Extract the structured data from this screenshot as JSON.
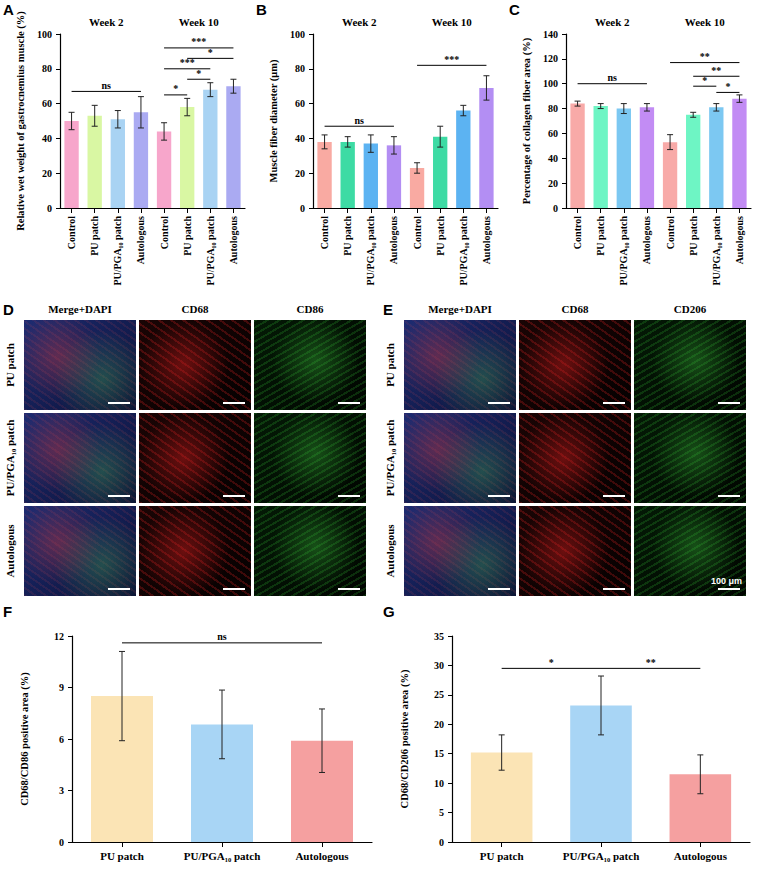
{
  "chart_data": [
    {
      "panel": "A",
      "type": "bar",
      "y_label": "Relative wet weight of gastrocnemius muscle (%)",
      "categories": [
        "Control",
        "PU patch",
        "PU/PGA₁₀ patch",
        "Autologous",
        "Control",
        "PU patch",
        "PU/PGA₁₀ patch",
        "Autologous"
      ],
      "values": [
        50,
        53,
        51,
        55,
        44,
        58,
        68,
        70
      ],
      "errors": [
        5,
        6,
        5,
        9,
        5,
        5,
        4,
        4
      ],
      "colors": [
        "#f7a6cb",
        "#d9f7a3",
        "#a9d3f3",
        "#aaaaf2",
        "#f7a6cb",
        "#d9f7a3",
        "#a9d3f3",
        "#aaaaf2"
      ],
      "ylim": [
        0,
        100
      ],
      "yticks": [
        0,
        20,
        40,
        60,
        80,
        100
      ],
      "grid": false,
      "groups": [
        {
          "label": "Week 2",
          "from": 0,
          "to": 3
        },
        {
          "label": "Week 10",
          "from": 4,
          "to": 7
        }
      ],
      "significance": [
        {
          "from": 0,
          "to": 3,
          "y": 67,
          "label": "ns"
        },
        {
          "from": 4,
          "to": 5,
          "y": 65,
          "label": "*"
        },
        {
          "from": 5,
          "to": 6,
          "y": 74,
          "label": "*"
        },
        {
          "from": 4,
          "to": 6,
          "y": 80,
          "label": "***"
        },
        {
          "from": 5,
          "to": 7,
          "y": 86,
          "label": "*"
        },
        {
          "from": 4,
          "to": 7,
          "y": 92,
          "label": "***"
        }
      ]
    },
    {
      "panel": "B",
      "type": "bar",
      "y_label": "Muscle fiber diameter (μm)",
      "categories": [
        "Control",
        "PU patch",
        "PU/PGA₁₀ patch",
        "Autologous",
        "Control",
        "PU patch",
        "PU/PGA₁₀ patch",
        "Autologous"
      ],
      "values": [
        38,
        38,
        37,
        36,
        23,
        41,
        56,
        69
      ],
      "errors": [
        4,
        3,
        5,
        5,
        3,
        6,
        3,
        7
      ],
      "colors": [
        "#f9aaa2",
        "#3ddba4",
        "#5cb3f2",
        "#b38ef3",
        "#f9aaa2",
        "#3ddba4",
        "#5cb3f2",
        "#b38ef3"
      ],
      "ylim": [
        0,
        100
      ],
      "yticks": [
        0,
        20,
        40,
        60,
        80,
        100
      ],
      "grid": false,
      "groups": [
        {
          "label": "Week 2",
          "from": 0,
          "to": 3
        },
        {
          "label": "Week 10",
          "from": 4,
          "to": 7
        }
      ],
      "significance": [
        {
          "from": 0,
          "to": 3,
          "y": 47,
          "label": "ns"
        },
        {
          "from": 4,
          "to": 7,
          "y": 82,
          "label": "***"
        }
      ]
    },
    {
      "panel": "C",
      "type": "bar",
      "y_label": "Percentage of collagen fiber area (%)",
      "categories": [
        "Control",
        "PU patch",
        "PU/PGA₁₀ patch",
        "Autologous",
        "Control",
        "PU patch",
        "PU/PGA₁₀ patch",
        "Autologous"
      ],
      "values": [
        84,
        82,
        80,
        81,
        53,
        75,
        81,
        88
      ],
      "errors": [
        2,
        2,
        4,
        3,
        6,
        2,
        3,
        3
      ],
      "colors": [
        "#f8aaa8",
        "#6ef5c4",
        "#7cc8f2",
        "#c28cf4",
        "#f8aaa8",
        "#6ef5c4",
        "#7cc8f2",
        "#c28cf4"
      ],
      "ylim": [
        0,
        140
      ],
      "yticks": [
        0,
        20,
        40,
        60,
        80,
        100,
        120,
        140
      ],
      "grid": false,
      "groups": [
        {
          "label": "Week 2",
          "from": 0,
          "to": 3
        },
        {
          "label": "Week 10",
          "from": 4,
          "to": 7
        }
      ],
      "significance": [
        {
          "from": 0,
          "to": 3,
          "y": 100,
          "label": "ns"
        },
        {
          "from": 6,
          "to": 7,
          "y": 93,
          "label": "*"
        },
        {
          "from": 5,
          "to": 6,
          "y": 98,
          "label": "*"
        },
        {
          "from": 5,
          "to": 7,
          "y": 106,
          "label": "**"
        },
        {
          "from": 4,
          "to": 7,
          "y": 117,
          "label": "**"
        }
      ]
    },
    {
      "panel": "F",
      "type": "bar",
      "y_label": "CD68/CD86 positive area (%)",
      "categories": [
        "PU patch",
        "PU/PGA₁₀ patch",
        "Autologous"
      ],
      "values": [
        8.5,
        6.85,
        5.9
      ],
      "errors": [
        2.6,
        2.0,
        1.85
      ],
      "colors": [
        "#fbe4b5",
        "#a8d5f5",
        "#f5a0a0"
      ],
      "ylim": [
        0,
        12
      ],
      "yticks": [
        0,
        3,
        6,
        9,
        12
      ],
      "grid": false,
      "significance": [
        {
          "from": 0,
          "to": 2,
          "y": 11.6,
          "label": "ns"
        }
      ]
    },
    {
      "panel": "G",
      "type": "bar",
      "y_label": "CD68/CD206 positive area (%)",
      "categories": [
        "PU patch",
        "PU/PGA₁₀ patch",
        "Autologous"
      ],
      "values": [
        15.2,
        23.2,
        11.5
      ],
      "errors": [
        3.0,
        5.0,
        3.3
      ],
      "colors": [
        "#fbe4b5",
        "#a8d5f5",
        "#f5a0a0"
      ],
      "ylim": [
        0,
        35
      ],
      "yticks": [
        0,
        5,
        10,
        15,
        20,
        25,
        30,
        35
      ],
      "grid": false,
      "significance": [
        {
          "from": 0,
          "to": 1,
          "y": 29.5,
          "label": "*"
        },
        {
          "from": 1,
          "to": 2,
          "y": 29.5,
          "label": "**"
        }
      ]
    }
  ],
  "micrographs": [
    {
      "panel": "D",
      "columns": [
        "Merge+DAPI",
        "CD68",
        "CD86"
      ],
      "rows": [
        "PU patch",
        "PU/PGA₁₀ patch",
        "Autologous"
      ]
    },
    {
      "panel": "E",
      "columns": [
        "Merge+DAPI",
        "CD68",
        "CD206"
      ],
      "rows": [
        "PU patch",
        "PU/PGA₁₀ patch",
        "Autologous"
      ],
      "scale_bar": "100 μm"
    }
  ]
}
